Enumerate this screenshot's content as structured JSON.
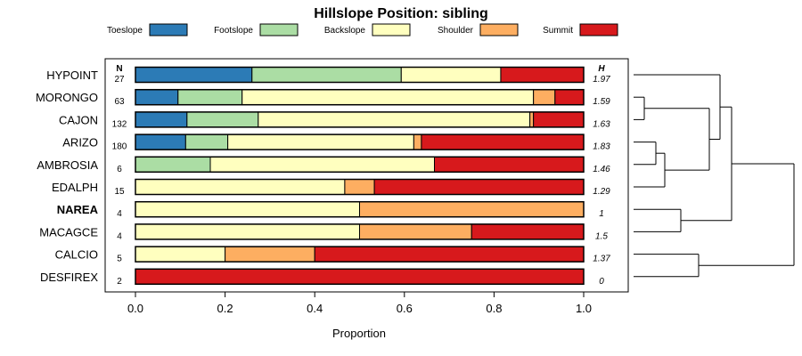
{
  "chart_data": {
    "type": "bar",
    "stacked": true,
    "orientation": "horizontal",
    "title": "Hillslope Position: sibling",
    "xlabel": "Proportion",
    "xlim": [
      0,
      1
    ],
    "x_ticks": [
      "0.0",
      "0.2",
      "0.4",
      "0.6",
      "0.8",
      "1.0"
    ],
    "legend_position": "top",
    "n_header": "N",
    "h_header": "H",
    "categories": [
      "HYPOINT",
      "MORONGO",
      "CAJON",
      "ARIZO",
      "AMBROSIA",
      "EDALPH",
      "NAREA",
      "MACAGCE",
      "CALCIO",
      "DESFIREX"
    ],
    "highlighted_category": "NAREA",
    "n": [
      "27",
      "63",
      "132",
      "180",
      "6",
      "15",
      "4",
      "4",
      "5",
      "2"
    ],
    "h": [
      "1.97",
      "1.59",
      "1.63",
      "1.83",
      "1.46",
      "1.29",
      "1",
      "1.5",
      "1.37",
      "0"
    ],
    "series": [
      {
        "name": "Toeslope",
        "color": "#2c7bb6",
        "values": [
          0.26,
          0.095,
          0.115,
          0.112,
          0,
          0,
          0,
          0,
          0,
          0
        ]
      },
      {
        "name": "Footslope",
        "color": "#abdda4",
        "values": [
          0.333,
          0.143,
          0.159,
          0.094,
          0.167,
          0,
          0,
          0,
          0,
          0
        ]
      },
      {
        "name": "Backslope",
        "color": "#ffffbf",
        "values": [
          0.222,
          0.65,
          0.606,
          0.415,
          0.5,
          0.467,
          0.5,
          0.5,
          0.2,
          0
        ]
      },
      {
        "name": "Shoulder",
        "color": "#fdae61",
        "values": [
          0,
          0.048,
          0.008,
          0.017,
          0,
          0.066,
          0.5,
          0.25,
          0.2,
          0
        ]
      },
      {
        "name": "Summit",
        "color": "#d7191c",
        "values": [
          0.185,
          0.064,
          0.112,
          0.362,
          0.333,
          0.467,
          0,
          0.25,
          0.6,
          1.0
        ]
      }
    ],
    "grid": false
  }
}
